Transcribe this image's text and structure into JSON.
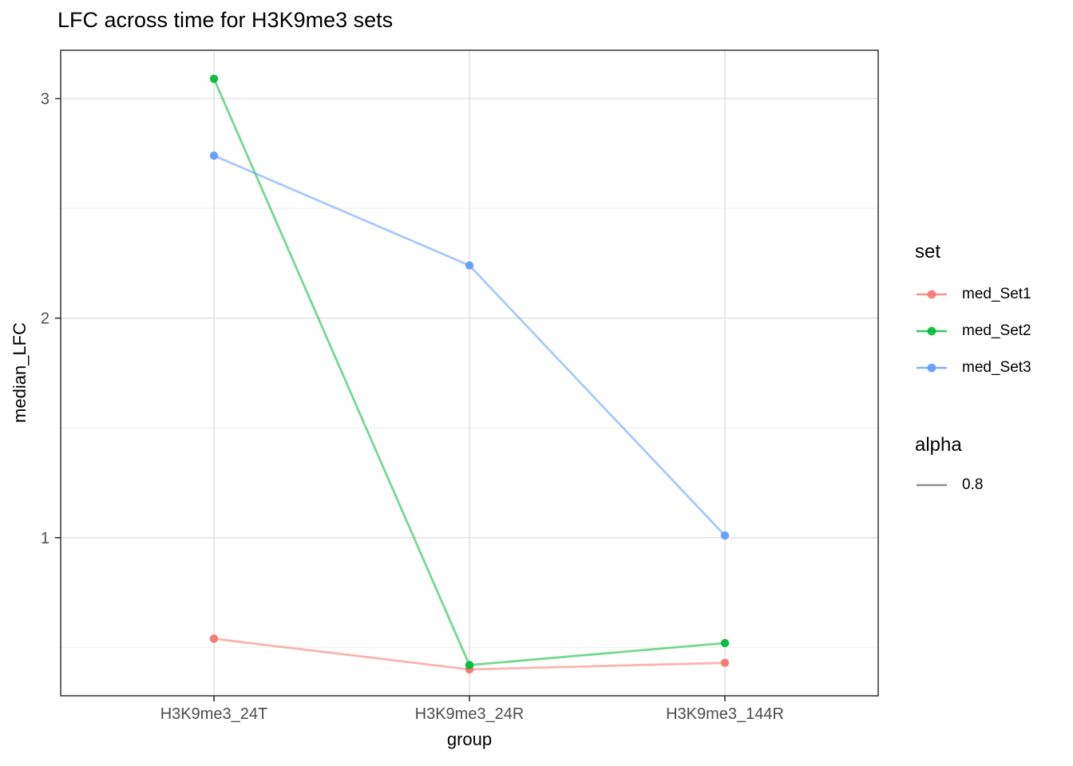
{
  "chart_data": {
    "type": "line",
    "title": "LFC across time for H3K9me3 sets",
    "xlabel": "group",
    "ylabel": "median_LFC",
    "categories": [
      "H3K9me3_24T",
      "H3K9me3_24R",
      "H3K9me3_144R"
    ],
    "series": [
      {
        "name": "med_Set1",
        "color": "#F8766D",
        "values": [
          0.54,
          0.4,
          0.43
        ]
      },
      {
        "name": "med_Set2",
        "color": "#00BA38",
        "values": [
          3.09,
          0.42,
          0.52
        ]
      },
      {
        "name": "med_Set3",
        "color": "#619CFF",
        "values": [
          2.74,
          2.24,
          1.01
        ]
      }
    ],
    "y_ticks": [
      1,
      2,
      3
    ],
    "y_minor_ticks": [
      0.5,
      1.5,
      2.5
    ],
    "ylim": [
      0.28,
      3.22
    ],
    "grid": true,
    "legend_position": "right",
    "line_alpha": 0.8
  },
  "legend": {
    "set_title": "set",
    "alpha_title": "alpha",
    "alpha_value": "0.8",
    "alpha_key_color": "#8C8C8C"
  },
  "colors": {
    "panel_border": "#333333",
    "grid_major": "#E6E6E6",
    "grid_minor": "#F2F2F2",
    "tick": "#333333",
    "tick_label": "#4D4D4D"
  }
}
